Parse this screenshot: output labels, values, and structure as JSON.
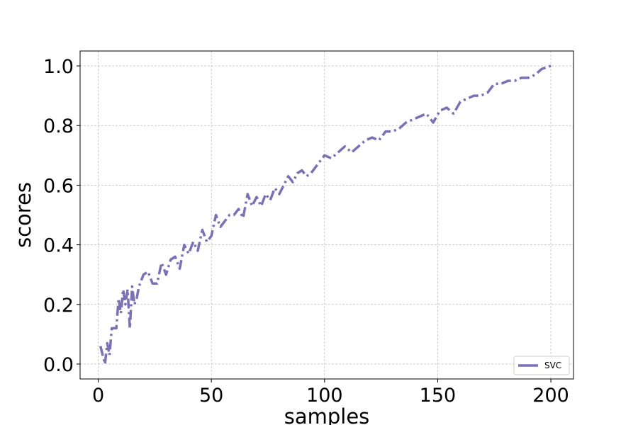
{
  "chart_data": {
    "type": "line",
    "xlabel": "samples",
    "ylabel": "scores",
    "xlim": [
      -8,
      210
    ],
    "ylim": [
      -0.05,
      1.05
    ],
    "xticks": [
      0,
      50,
      100,
      150,
      200
    ],
    "xtick_labels": [
      "0",
      "50",
      "100",
      "150",
      "200"
    ],
    "yticks": [
      0.0,
      0.2,
      0.4,
      0.6,
      0.8,
      1.0
    ],
    "ytick_labels": [
      "0.0",
      "0.2",
      "0.4",
      "0.6",
      "0.8",
      "1.0"
    ],
    "grid": true,
    "legend_position": "lower right",
    "line_style": "dashdot",
    "series": [
      {
        "name": "SVC",
        "color": "#7b70b5",
        "x": [
          1,
          2,
          3,
          4,
          5,
          6,
          7,
          8,
          9,
          10,
          11,
          12,
          13,
          14,
          15,
          16,
          17,
          18,
          19,
          20,
          22,
          24,
          26,
          28,
          30,
          32,
          34,
          36,
          38,
          40,
          42,
          44,
          46,
          48,
          50,
          52,
          54,
          56,
          58,
          60,
          62,
          64,
          66,
          68,
          70,
          72,
          74,
          76,
          78,
          80,
          82,
          84,
          86,
          88,
          90,
          92,
          94,
          96,
          98,
          100,
          103,
          106,
          109,
          112,
          115,
          118,
          121,
          124,
          127,
          130,
          133,
          136,
          139,
          142,
          145,
          148,
          151,
          154,
          157,
          160,
          163,
          166,
          169,
          172,
          175,
          178,
          181,
          184,
          187,
          190,
          193,
          196,
          200
        ],
        "y": [
          0.06,
          0.03,
          0.0,
          0.07,
          0.03,
          0.12,
          0.12,
          0.12,
          0.22,
          0.17,
          0.25,
          0.2,
          0.25,
          0.12,
          0.26,
          0.2,
          0.22,
          0.26,
          0.28,
          0.3,
          0.31,
          0.27,
          0.27,
          0.34,
          0.3,
          0.35,
          0.36,
          0.32,
          0.4,
          0.37,
          0.41,
          0.38,
          0.45,
          0.41,
          0.43,
          0.5,
          0.46,
          0.48,
          0.5,
          0.5,
          0.52,
          0.49,
          0.57,
          0.53,
          0.56,
          0.53,
          0.57,
          0.55,
          0.59,
          0.57,
          0.6,
          0.63,
          0.61,
          0.64,
          0.65,
          0.63,
          0.64,
          0.66,
          0.68,
          0.7,
          0.69,
          0.71,
          0.73,
          0.71,
          0.73,
          0.75,
          0.76,
          0.75,
          0.78,
          0.78,
          0.79,
          0.81,
          0.82,
          0.83,
          0.84,
          0.81,
          0.85,
          0.86,
          0.84,
          0.88,
          0.89,
          0.9,
          0.9,
          0.91,
          0.94,
          0.94,
          0.95,
          0.95,
          0.96,
          0.96,
          0.97,
          0.99,
          1.0
        ]
      }
    ]
  }
}
